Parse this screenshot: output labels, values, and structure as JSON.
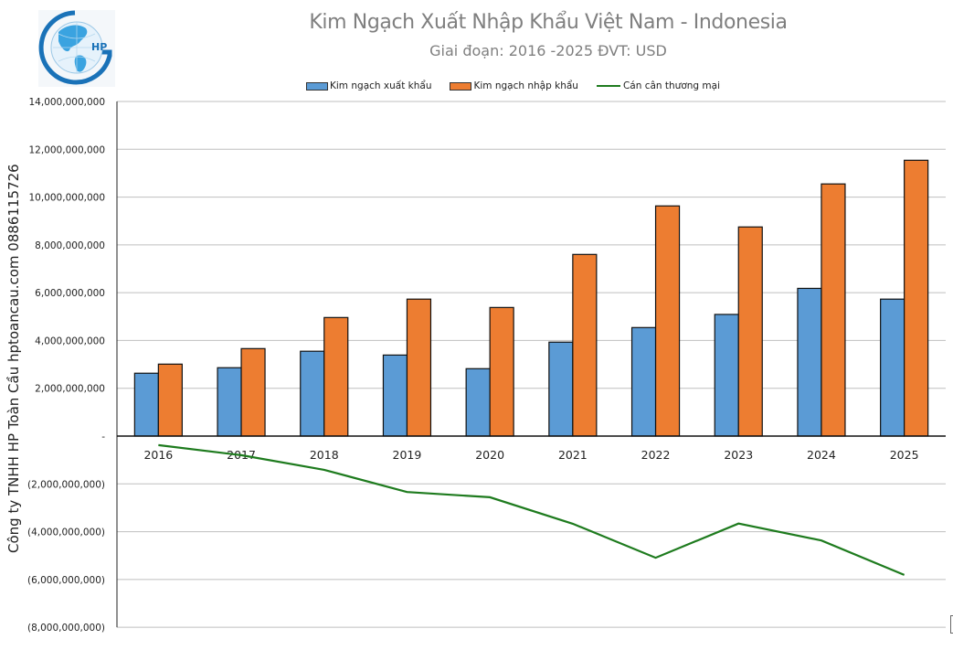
{
  "header": {
    "title": "Kim Ngạch Xuất Nhập Khẩu Việt Nam - Indonesia",
    "subtitle": "Giai đoạn: 2016 -2025  ĐVT: USD",
    "logo_text": "HP"
  },
  "side_label": "Công ty TNHH HP Toàn Cầu hptoancau.com 0886115726",
  "legend": [
    {
      "label": "Kim ngạch xuất khẩu",
      "type": "bar",
      "color": "#5b9bd5"
    },
    {
      "label": "Kim ngạch nhập khẩu",
      "type": "bar",
      "color": "#ed7d31"
    },
    {
      "label": "Cán cân thương mại",
      "type": "line",
      "color": "#1e7b1e"
    }
  ],
  "y_axis": {
    "ticks": [
      {
        "value": 14000000000,
        "label": "14,000,000,000"
      },
      {
        "value": 12000000000,
        "label": "12,000,000,000"
      },
      {
        "value": 10000000000,
        "label": "10,000,000,000"
      },
      {
        "value": 8000000000,
        "label": "8,000,000,000"
      },
      {
        "value": 6000000000,
        "label": "6,000,000,000"
      },
      {
        "value": 4000000000,
        "label": "4,000,000,000"
      },
      {
        "value": 2000000000,
        "label": "2,000,000,000"
      },
      {
        "value": 0,
        "label": "-"
      },
      {
        "value": -2000000000,
        "label": "(2,000,000,000)"
      },
      {
        "value": -4000000000,
        "label": "(4,000,000,000)"
      },
      {
        "value": -6000000000,
        "label": "(6,000,000,000)"
      },
      {
        "value": -8000000000,
        "label": "(8,000,000,000)"
      }
    ]
  },
  "chart_data": {
    "type": "bar",
    "title": "Kim Ngạch Xuất Nhập Khẩu Việt Nam - Indonesia",
    "subtitle": "Giai đoạn: 2016 -2025  ĐVT: USD",
    "xlabel": "",
    "ylabel": "",
    "ylim": [
      -8000000000,
      14000000000
    ],
    "grid": true,
    "legend_position": "top",
    "categories": [
      "2016",
      "2017",
      "2018",
      "2019",
      "2020",
      "2021",
      "2022",
      "2023",
      "2024",
      "2025"
    ],
    "series": [
      {
        "name": "Kim ngạch xuất khẩu",
        "type": "bar",
        "color": "#5b9bd5",
        "values": [
          2630000000,
          2860000000,
          3550000000,
          3390000000,
          2820000000,
          3930000000,
          4540000000,
          5090000000,
          6180000000,
          5730000000
        ]
      },
      {
        "name": "Kim ngạch nhập khẩu",
        "type": "bar",
        "color": "#ed7d31",
        "values": [
          3010000000,
          3660000000,
          4960000000,
          5730000000,
          5380000000,
          7600000000,
          9630000000,
          8750000000,
          10550000000,
          11540000000
        ]
      },
      {
        "name": "Cán cân thương mại",
        "type": "line",
        "color": "#1e7b1e",
        "values": [
          -380000000,
          -800000000,
          -1410000000,
          -2340000000,
          -2560000000,
          -3670000000,
          -5090000000,
          -3660000000,
          -4370000000,
          -5810000000
        ]
      }
    ]
  }
}
